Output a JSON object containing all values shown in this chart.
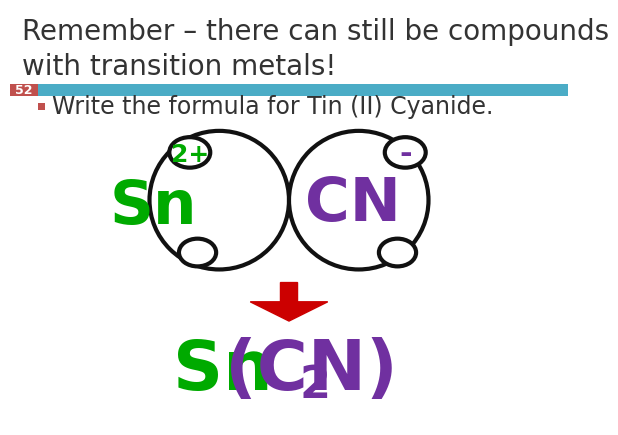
{
  "title_line1": "Remember – there can still be compounds",
  "title_line2": "with transition metals!",
  "title_fontsize": 20,
  "title_color": "#333333",
  "bg_color": "#ffffff",
  "header_bar_color": "#4bacc6",
  "slide_num": "52",
  "slide_num_bg": "#c0504d",
  "bullet_text": "Write the formula for Tin (II) Cyanide.",
  "bullet_fontsize": 17,
  "bullet_color": "#333333",
  "bullet_marker_color": "#c0504d",
  "sn_label": "Sn",
  "sn_color": "#00aa00",
  "cn_label": "CN",
  "cn_color": "#7030a0",
  "charge_2plus": "2+",
  "charge_minus": "-",
  "charge_color_sn": "#00aa00",
  "charge_color_cn": "#7030a0",
  "formula_sn": "Sn",
  "formula_cn": "(CN)",
  "formula_sub": "2",
  "formula_color_sn": "#00aa00",
  "formula_color_cn": "#7030a0",
  "arrow_color": "#cc0000",
  "circle_lw": 3.0,
  "circle_color": "#111111"
}
